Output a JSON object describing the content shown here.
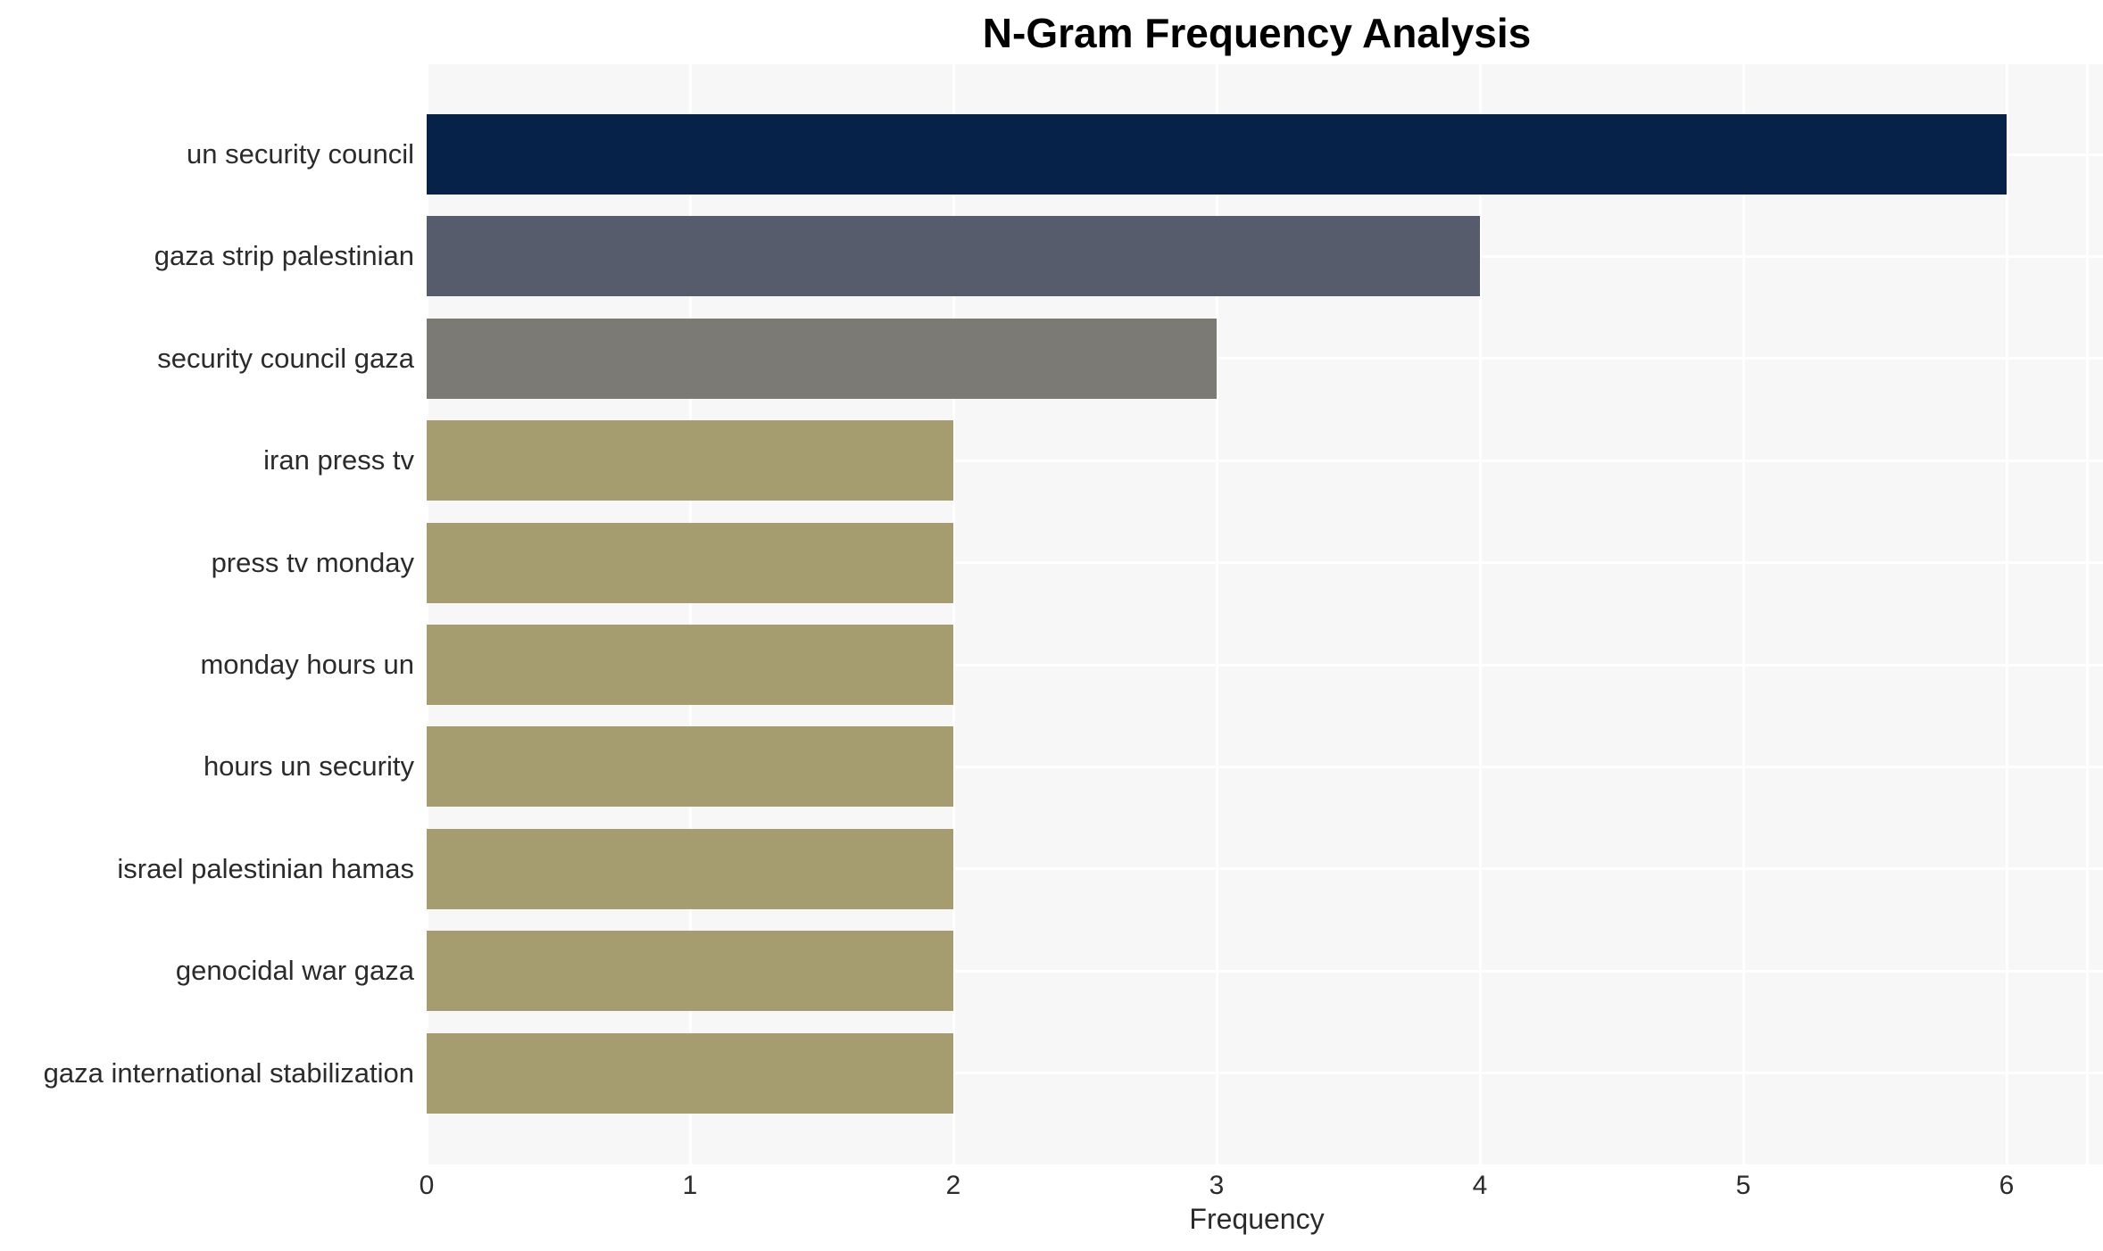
{
  "chart": {
    "title": "N-Gram Frequency Analysis",
    "xlabel": "Frequency"
  },
  "chart_data": {
    "type": "bar",
    "orientation": "horizontal",
    "title": "N-Gram Frequency Analysis",
    "xlabel": "Frequency",
    "ylabel": "",
    "categories": [
      "un security council",
      "gaza strip palestinian",
      "security council gaza",
      "iran press tv",
      "press tv monday",
      "monday hours un",
      "hours un security",
      "israel palestinian hamas",
      "genocidal war gaza",
      "gaza international stabilization"
    ],
    "values": [
      6,
      4,
      3,
      2,
      2,
      2,
      2,
      2,
      2,
      2
    ],
    "xticks": [
      0,
      1,
      2,
      3,
      4,
      5,
      6
    ],
    "xlim": [
      0,
      6.37
    ],
    "grid": true,
    "legend": false,
    "bar_colors": [
      "#072248",
      "#565c6b",
      "#7b7a75",
      "#a59d70",
      "#a59d70",
      "#a59d70",
      "#a59d70",
      "#a59d70",
      "#a59d70",
      "#a59d70"
    ],
    "plot_background": "#f7f7f7",
    "gridline_color": "#ffffff",
    "text_color": "#2b2b2b"
  }
}
